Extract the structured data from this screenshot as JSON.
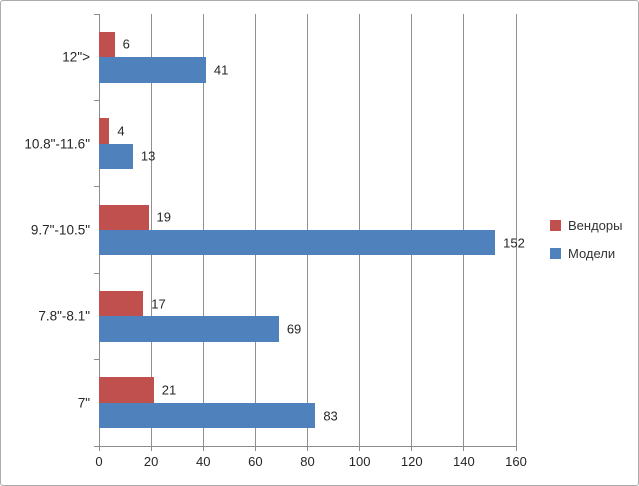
{
  "chart_data": {
    "type": "bar",
    "orientation": "horizontal",
    "title": "",
    "categories": [
      "12\">",
      "10.8\"-11.6\"",
      "9.7\"-10.5\"",
      "7.8\"-8.1\"",
      "7\""
    ],
    "series": [
      {
        "name": "Вендоры",
        "color": "#C0504D",
        "values": [
          6,
          4,
          19,
          17,
          21
        ]
      },
      {
        "name": "Модели",
        "color": "#4F81BD",
        "values": [
          41,
          13,
          152,
          69,
          83
        ]
      }
    ],
    "xlim": [
      0,
      160
    ],
    "xticks": [
      0,
      20,
      40,
      60,
      80,
      100,
      120,
      140,
      160
    ],
    "grid": true,
    "data_labels": true,
    "legend_position": "right",
    "colors": {
      "gridline": "#909090",
      "axis": "#8c8c8c",
      "text": "#262626",
      "background": "#ffffff",
      "border": "#ababab"
    }
  }
}
